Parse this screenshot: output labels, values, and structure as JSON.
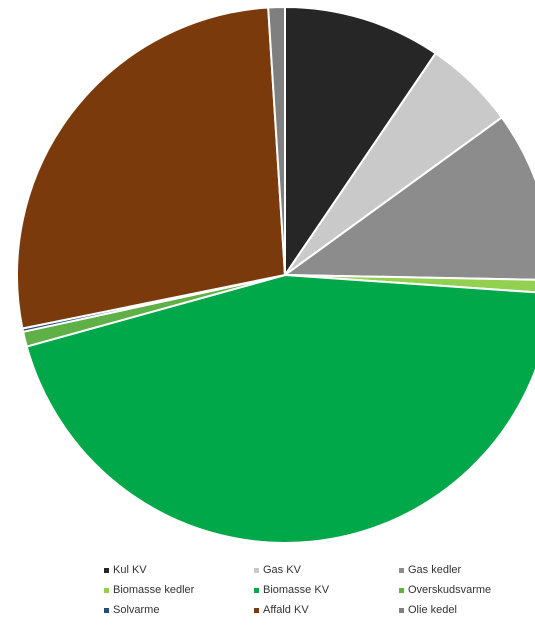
{
  "chart_data": {
    "type": "pie",
    "title": "",
    "legend_position": "bottom",
    "start_angle_deg": 0,
    "direction": "clockwise",
    "slices": [
      {
        "name": "Kul KV",
        "value": 9.5,
        "color": "#262626"
      },
      {
        "name": "Gas KV",
        "value": 5.5,
        "color": "#c9c9c9"
      },
      {
        "name": "Gas kedler",
        "value": 10.3,
        "color": "#8c8c8c"
      },
      {
        "name": "Biomasse kedler",
        "value": 0.8,
        "color": "#92d050"
      },
      {
        "name": "Biomasse KV",
        "value": 44.6,
        "color": "#00a84a"
      },
      {
        "name": "Overskudsvarme",
        "value": 0.9,
        "color": "#5fb047"
      },
      {
        "name": "Solvarme",
        "value": 0.2,
        "color": "#1f4e79"
      },
      {
        "name": "Affald KV",
        "value": 27.2,
        "color": "#7b3a0b"
      },
      {
        "name": "Olie kedel",
        "value": 1.0,
        "color": "#7f7f7f"
      }
    ]
  }
}
